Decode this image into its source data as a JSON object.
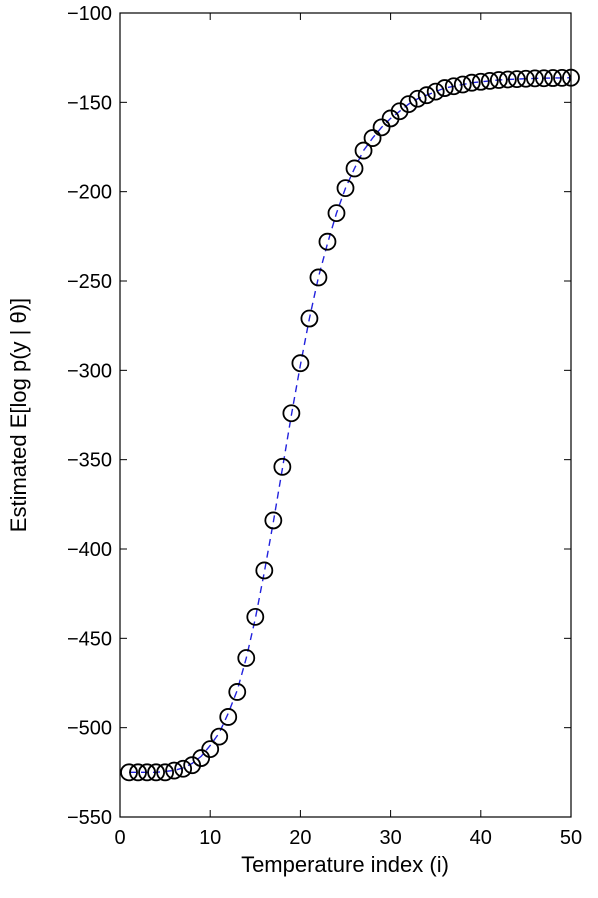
{
  "chart_data": {
    "type": "scatter",
    "title": "",
    "xlabel": "Temperature index (i)",
    "ylabel": "Estimated E[log p(y | θ)]",
    "xlim": [
      0,
      50
    ],
    "ylim": [
      -550,
      -100
    ],
    "xticks": [
      0,
      10,
      20,
      30,
      40,
      50
    ],
    "yticks": [
      -100,
      -150,
      -200,
      -250,
      -300,
      -350,
      -400,
      -450,
      -500,
      -550
    ],
    "xtick_labels": [
      "0",
      "10",
      "20",
      "30",
      "40",
      "50"
    ],
    "ytick_labels": [
      "−100",
      "−150",
      "−200",
      "−250",
      "−300",
      "−350",
      "−400",
      "−450",
      "−500",
      "−550"
    ],
    "grid": false,
    "series": [
      {
        "style": "markers",
        "marker": "open-circle",
        "color": "#000000",
        "x": [
          1,
          2,
          3,
          4,
          5,
          6,
          7,
          8,
          9,
          10,
          11,
          12,
          13,
          14,
          15,
          16,
          17,
          18,
          19,
          20,
          21,
          22,
          23,
          24,
          25,
          26,
          27,
          28,
          29,
          30,
          31,
          32,
          33,
          34,
          35,
          36,
          37,
          38,
          39,
          40,
          41,
          42,
          43,
          44,
          45,
          46,
          47,
          48,
          49,
          50
        ],
        "y": [
          -525,
          -525,
          -525,
          -525,
          -525,
          -524,
          -523,
          -521,
          -517,
          -512,
          -505,
          -494,
          -480,
          -461,
          -438,
          -412,
          -384,
          -354,
          -324,
          -296,
          -271,
          -248,
          -228,
          -212,
          -198,
          -187,
          -177,
          -170,
          -164,
          -159,
          -155,
          -151,
          -148,
          -146,
          -144,
          -142,
          -141,
          -140,
          -139,
          -138.5,
          -138,
          -137.5,
          -137.2,
          -137,
          -136.8,
          -136.6,
          -136.5,
          -136.4,
          -136.3,
          -136.2
        ]
      },
      {
        "style": "dashed-line",
        "color": "#2222dd",
        "x": [
          1,
          2,
          3,
          4,
          5,
          6,
          7,
          8,
          9,
          10,
          11,
          12,
          13,
          14,
          15,
          16,
          17,
          18,
          19,
          20,
          21,
          22,
          23,
          24,
          25,
          26,
          27,
          28,
          29,
          30,
          31,
          32,
          33,
          34,
          35,
          36,
          37,
          38,
          39,
          40,
          41,
          42,
          43,
          44,
          45,
          46,
          47,
          48,
          49,
          50
        ],
        "y": [
          -525,
          -525,
          -525,
          -525,
          -524.5,
          -524,
          -522.5,
          -520,
          -516,
          -510,
          -503,
          -492,
          -479,
          -461,
          -439,
          -413,
          -385,
          -355,
          -325,
          -297,
          -271,
          -248,
          -229,
          -212,
          -198,
          -187,
          -177,
          -170,
          -164,
          -159,
          -155,
          -151,
          -148,
          -146,
          -144,
          -142,
          -141,
          -140,
          -139,
          -138.5,
          -138,
          -137.5,
          -137.2,
          -137,
          -136.8,
          -136.6,
          -136.5,
          -136.4,
          -136.3,
          -136.2
        ]
      }
    ]
  }
}
